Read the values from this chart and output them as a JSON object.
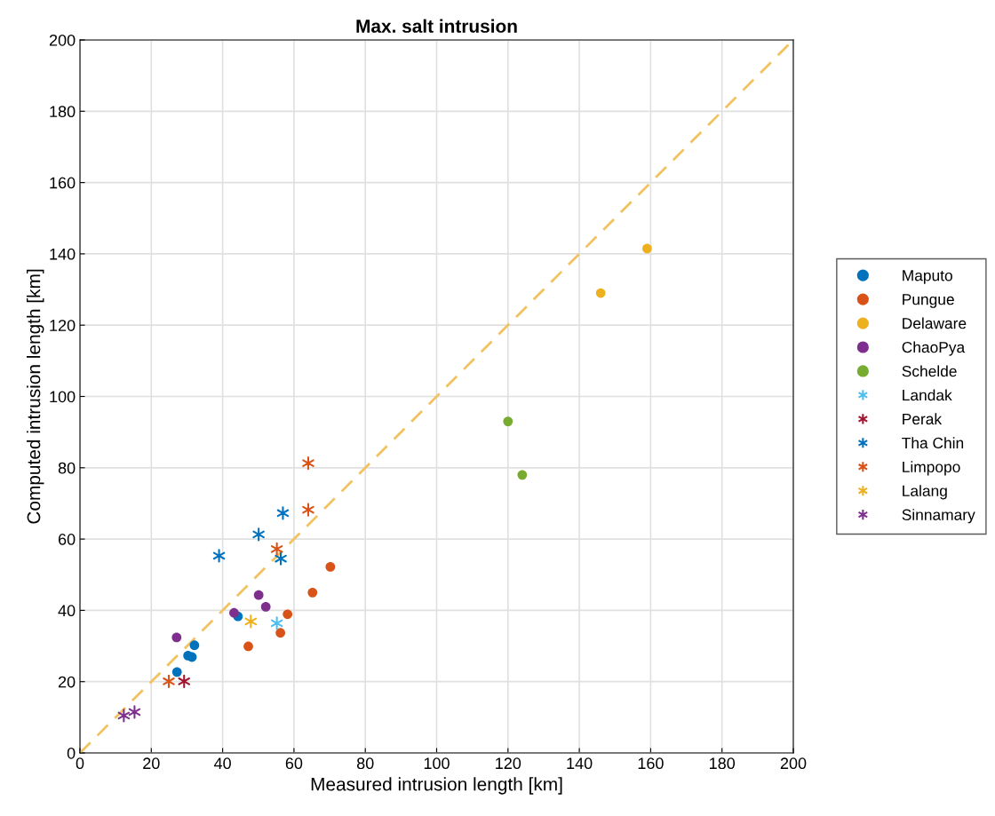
{
  "chart_data": {
    "type": "scatter",
    "title": "Max. salt intrusion",
    "xlabel": "Measured intrusion length [km]",
    "ylabel": "Computed intrusion length [km]",
    "xlim": [
      0,
      200
    ],
    "ylim": [
      0,
      200
    ],
    "xticks": [
      0,
      20,
      40,
      60,
      80,
      100,
      120,
      140,
      160,
      180,
      200
    ],
    "yticks": [
      0,
      20,
      40,
      60,
      80,
      100,
      120,
      140,
      160,
      180,
      200
    ],
    "grid": true,
    "legend": "right",
    "series": [
      {
        "type": "line",
        "color": "#f0c260",
        "line_style": "dashed",
        "marker": "none",
        "x": [
          0,
          200
        ],
        "values": [
          0,
          200
        ]
      },
      {
        "name": "Maputo",
        "color": "#0072bd",
        "marker": "circle",
        "x": [
          27.2,
          30.3,
          31.4,
          32.1,
          44.3
        ],
        "values": [
          22.7,
          27.3,
          26.9,
          30.2,
          38.3
        ]
      },
      {
        "name": "Pungue",
        "color": "#d95319",
        "marker": "circle",
        "x": [
          47.2,
          56.2,
          58.2,
          65.2,
          70.2
        ],
        "values": [
          29.9,
          33.7,
          38.9,
          45.0,
          52.2
        ]
      },
      {
        "name": "Delaware",
        "color": "#edb120",
        "marker": "circle",
        "x": [
          146,
          159
        ],
        "values": [
          129,
          141.5
        ]
      },
      {
        "name": "ChaoPya",
        "color": "#7e2f8e",
        "marker": "circle",
        "x": [
          27.1,
          43.2,
          50.1,
          52.1
        ],
        "values": [
          32.4,
          39.3,
          44.3,
          41.0
        ]
      },
      {
        "name": "Schelde",
        "color": "#77ac30",
        "marker": "circle",
        "x": [
          120,
          124
        ],
        "values": [
          93,
          78
        ]
      },
      {
        "name": "Landak",
        "color": "#4dbeee",
        "marker": "cross",
        "x": [
          55.2
        ],
        "values": [
          36.4
        ]
      },
      {
        "name": "Perak",
        "color": "#a2142f",
        "marker": "cross",
        "x": [
          29.2
        ],
        "values": [
          20.1
        ]
      },
      {
        "name": "Tha Chin",
        "color": "#0072bd",
        "marker": "cross",
        "x": [
          39.0,
          50.1,
          56.9,
          56.3
        ],
        "values": [
          55.3,
          61.3,
          67.3,
          54.5
        ]
      },
      {
        "name": "Limpopo",
        "color": "#d95319",
        "marker": "cross",
        "x": [
          64.0,
          64.0,
          55.2,
          24.9
        ],
        "values": [
          81.3,
          68.2,
          57.2,
          20.1
        ]
      },
      {
        "name": "Lalang",
        "color": "#edb120",
        "marker": "cross",
        "x": [
          47.9
        ],
        "values": [
          36.9
        ]
      },
      {
        "name": "Sinnamary",
        "color": "#7e2f8e",
        "marker": "cross",
        "x": [
          12.3,
          15.3
        ],
        "values": [
          10.5,
          11.5
        ]
      }
    ]
  }
}
